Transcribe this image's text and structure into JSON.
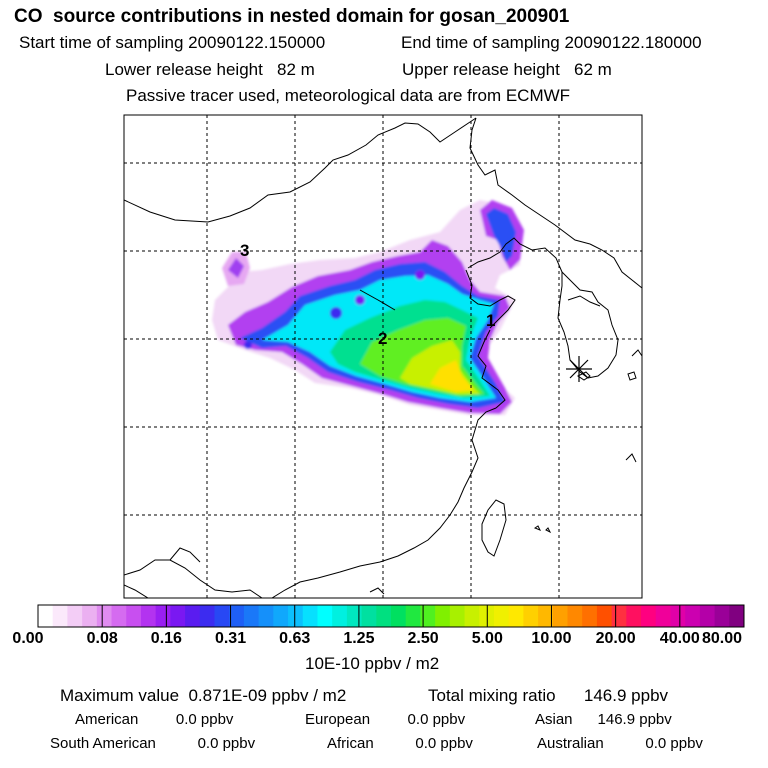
{
  "header": {
    "title": "CO  source contributions in nested domain for gosan_200901",
    "start_label": "Start time of sampling 20090122.150000",
    "end_label": "End time of sampling 20090122.180000",
    "lower_label": "Lower release height   82 m",
    "upper_label": "Upper release height   62 m",
    "note": "Passive tracer used, meteorological data are from ECMWF"
  },
  "map": {
    "labels": [
      "3",
      "2",
      "1"
    ],
    "receptor_icon": "asterisk-icon"
  },
  "colorbar": {
    "ticks": [
      "0.00",
      "0.08",
      "0.16",
      "0.31",
      "0.63",
      "1.25",
      "2.50",
      "5.00",
      "10.00",
      "20.00",
      "40.00",
      "80.00"
    ],
    "colors": [
      "#ffffff",
      "#fbe9fb",
      "#f3cdf6",
      "#ebb0f1",
      "#e08cf0",
      "#d56bf0",
      "#c84ff0",
      "#b333f0",
      "#9a1ff2",
      "#7a18f2",
      "#5a1cf0",
      "#3c2cf0",
      "#2848f4",
      "#1f5ff6",
      "#1a78f8",
      "#1590fa",
      "#10a8fc",
      "#0cc0fd",
      "#07e0fe",
      "#00ffff",
      "#00f0e0",
      "#00e8c0",
      "#00e0a0",
      "#00e080",
      "#00e060",
      "#20e840",
      "#50f020",
      "#80f000",
      "#a8f000",
      "#c8f000",
      "#e0f000",
      "#f0f000",
      "#ffe800",
      "#ffd000",
      "#ffb800",
      "#ffa000",
      "#ff8800",
      "#ff7000",
      "#ff5000",
      "#ff3040",
      "#ff1060",
      "#ff0080",
      "#f0009a",
      "#e000a8",
      "#cc00b0",
      "#b400a8",
      "#9a0098",
      "#800080"
    ],
    "unit": "10E-10 ppbv / m2"
  },
  "summary": {
    "max_value": "Maximum value  0.871E-09 ppbv / m2",
    "total_mixing": "Total mixing ratio      146.9 ppbv",
    "american": "American         0.0 ppbv",
    "european": "European         0.0 ppbv",
    "asian": "Asian      146.9 ppbv",
    "south_american": "South American          0.0 ppbv",
    "african": "African          0.0 ppbv",
    "australian": "Australian          0.0 ppbv"
  }
}
